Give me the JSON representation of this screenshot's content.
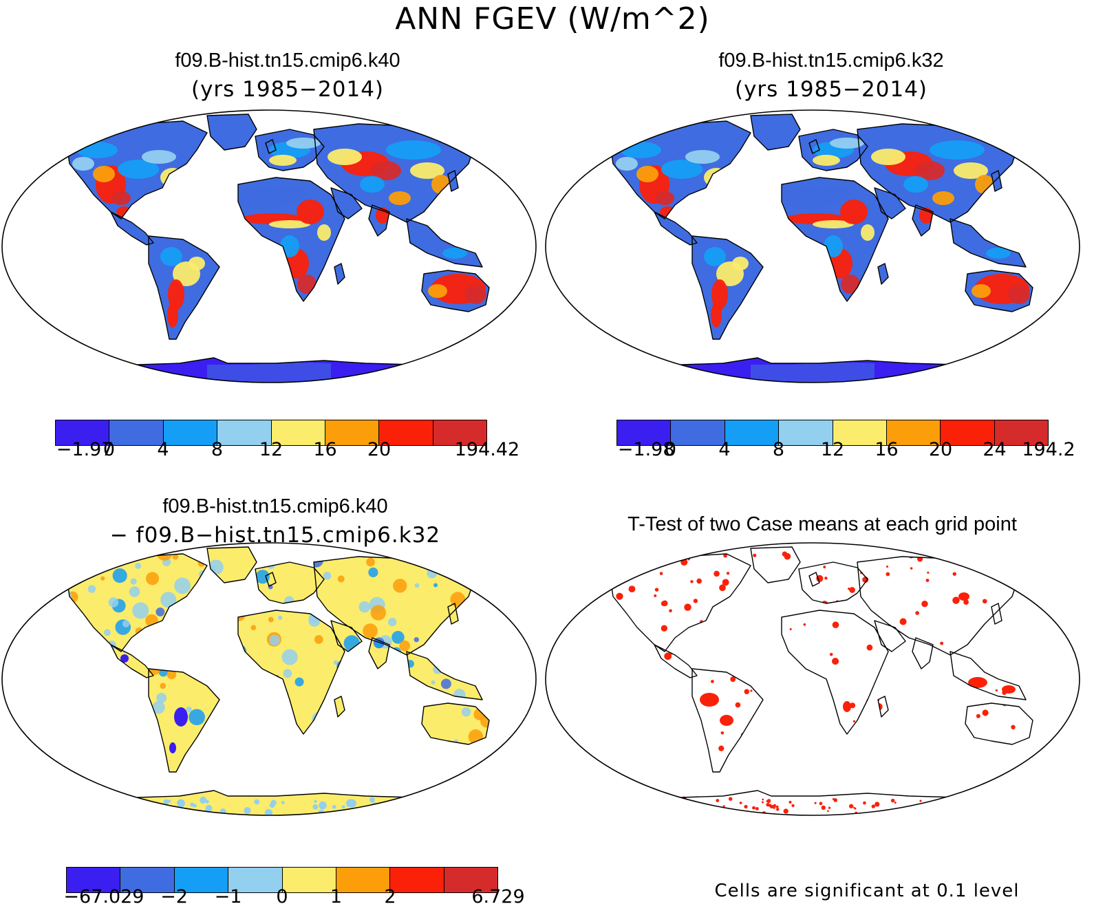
{
  "title": "ANN FGEV (W/m^2)",
  "panels": {
    "top_left": {
      "title": "f09.B-hist.tn15.cmip6.k40",
      "subtitle": "(yrs 1985−2014)"
    },
    "top_right": {
      "title": "f09.B-hist.tn15.cmip6.k32",
      "subtitle": "(yrs 1985−2014)"
    },
    "bottom_left": {
      "title": "f09.B-hist.tn15.cmip6.k40",
      "subtitle": "− f09.B−hist.tn15.cmip6.k32"
    },
    "bottom_right": {
      "title": "T-Test of two Case means at each grid point",
      "note": "Cells are significant at 0.1 level"
    }
  },
  "colorbars": {
    "top_left": {
      "colors": [
        "#3a1ff0",
        "#3f6ce0",
        "#159ef5",
        "#93cfef",
        "#fbec6b",
        "#fb9e0a",
        "#fb2109",
        "#d62b2b"
      ],
      "labels": [
        "−1.97",
        "0",
        "4",
        "8",
        "12",
        "16",
        "20",
        "194.42"
      ]
    },
    "top_right": {
      "colors": [
        "#3a1ff0",
        "#3f6ce0",
        "#159ef5",
        "#93cfef",
        "#fbec6b",
        "#fb9e0a",
        "#fb2109",
        "#d62b2b"
      ],
      "labels": [
        "−1.98",
        "0",
        "4",
        "8",
        "12",
        "16",
        "20",
        "24",
        "194.2"
      ]
    },
    "bottom_left": {
      "colors": [
        "#3a1ff0",
        "#3f6ce0",
        "#159ef5",
        "#93cfef",
        "#fbec6b",
        "#fb9e0a",
        "#fb2109",
        "#d62b2b"
      ],
      "labels": [
        "−67.029",
        "−2",
        "−1",
        "0",
        "1",
        "2",
        "6.729"
      ]
    }
  },
  "map_colors": {
    "land_base": "#3f6ce0",
    "antarctica": "#3a1ff0",
    "diff_base": "#fbec6b",
    "signif": "#fb2109"
  }
}
